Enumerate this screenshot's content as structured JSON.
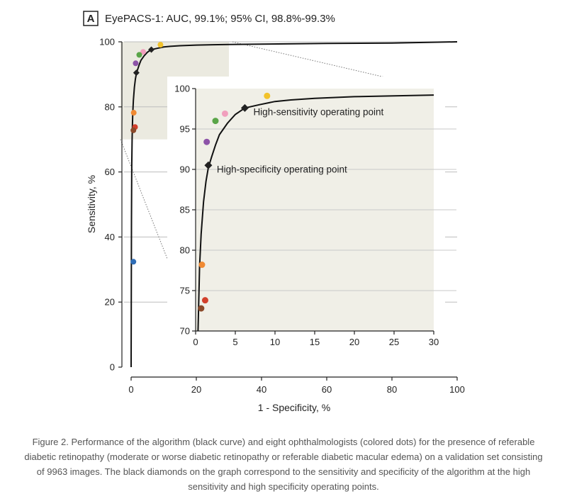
{
  "panel": {
    "label": "A",
    "title": "EyePACS-1: AUC, 99.1%; 95% CI, 98.8%-99.3%"
  },
  "caption": "Figure 2. Performance of the algorithm (black curve) and eight ophthalmologists (colored dots) for the presence of referable diabetic retinopathy (moderate or worse diabetic retinopathy or referable diabetic macular edema) on a validation set consisting of 9963 images. The black diamonds on the graph correspond to the sensitivity and specificity of the algorithm at the high sensitivity and high specificity operating points.",
  "chart_data": [
    {
      "type": "line",
      "xlabel": "1 - Specificity, %",
      "ylabel": "Sensitivity, %",
      "xlim": [
        0,
        100
      ],
      "ylim": [
        0,
        100
      ],
      "xticks": [
        0,
        20,
        40,
        60,
        80,
        100
      ],
      "yticks": [
        0,
        20,
        40,
        60,
        80,
        100
      ],
      "grid": "horizontal",
      "series": [
        {
          "x": [
            0,
            0.1,
            0.2,
            0.3,
            0.4,
            0.5,
            0.7,
            1.0,
            1.3,
            1.6,
            2.0,
            2.5,
            3.0,
            4.0,
            5.0,
            6.2,
            8.0,
            10.0,
            12.0,
            15.0,
            20.0,
            25.0,
            30.0,
            40.0,
            50.0,
            60.0,
            80.0,
            100.0
          ],
          "y": [
            0,
            45,
            62,
            70,
            74,
            78,
            82,
            86,
            88.5,
            90.2,
            91.5,
            93.0,
            94.3,
            95.7,
            96.8,
            97.6,
            98.0,
            98.4,
            98.6,
            98.8,
            99.0,
            99.1,
            99.2,
            99.3,
            99.4,
            99.5,
            99.6,
            100.0
          ]
        }
      ],
      "operating_points": [
        {
          "label": "High-sensitivity operating point",
          "x": 6.2,
          "y": 97.6,
          "color": "#222222"
        },
        {
          "label": "High-specificity operating point",
          "x": 1.6,
          "y": 90.5,
          "color": "#222222"
        }
      ],
      "ophthalmologists": [
        {
          "x": 9.0,
          "y": 99.1,
          "color": "#f2c22b"
        },
        {
          "x": 3.7,
          "y": 96.9,
          "color": "#f19fbd"
        },
        {
          "x": 2.5,
          "y": 96.0,
          "color": "#5aa548"
        },
        {
          "x": 1.4,
          "y": 93.4,
          "color": "#8d53a8"
        },
        {
          "x": 0.8,
          "y": 78.2,
          "color": "#f08a33"
        },
        {
          "x": 1.2,
          "y": 73.8,
          "color": "#d2402c"
        },
        {
          "x": 0.7,
          "y": 72.8,
          "color": "#8b4a2b"
        },
        {
          "x": 0.7,
          "y": 32.4,
          "color": "#2f6db6"
        }
      ],
      "zoom_region": {
        "x": [
          0,
          30
        ],
        "y": [
          70,
          100
        ],
        "color": "#ebeae0"
      }
    },
    {
      "type": "line",
      "inset": true,
      "xlim": [
        0,
        30
      ],
      "ylim": [
        70,
        100
      ],
      "xticks": [
        0,
        5,
        10,
        15,
        20,
        25,
        30
      ],
      "yticks": [
        70,
        75,
        80,
        85,
        90,
        95,
        100
      ],
      "grid": "horizontal",
      "background": "#f0efe7"
    }
  ]
}
